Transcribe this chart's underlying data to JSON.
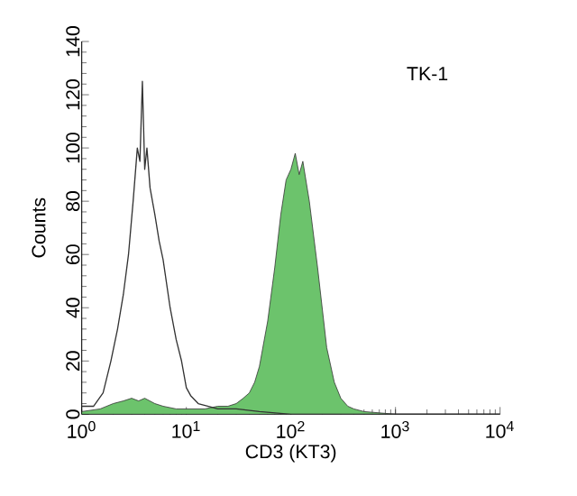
{
  "chart_data": {
    "type": "area",
    "xlabel": "CD3 (KT3)",
    "ylabel": "Counts",
    "annotations": [
      "TK-1"
    ],
    "log": "x",
    "grid": false,
    "xlim": [
      1,
      10000
    ],
    "ylim": [
      0,
      140
    ],
    "xticks": [
      {
        "value": 1,
        "label": "10$^{0}$"
      },
      {
        "value": 10,
        "label": "10$^{1}$"
      },
      {
        "value": 100,
        "label": "10$^{2}$"
      },
      {
        "value": 1000,
        "label": "10$^{3}$"
      },
      {
        "value": 10000,
        "label": "10$^{4}$"
      }
    ],
    "yticks": [
      0,
      20,
      40,
      60,
      80,
      100,
      120,
      140
    ],
    "series": [
      {
        "color": "#6cc36c",
        "x": [
          1,
          1.5,
          2,
          2.5,
          3,
          3.5,
          4,
          5,
          6,
          8,
          10,
          15,
          20,
          25,
          30,
          35,
          40,
          45,
          50,
          60,
          70,
          80,
          90,
          100,
          110,
          120,
          130,
          150,
          180,
          220,
          260,
          300,
          350,
          400,
          500,
          1000,
          10000
        ],
        "values": [
          1,
          2,
          4,
          5,
          6,
          5,
          6,
          4,
          3,
          2,
          2,
          2,
          3,
          3,
          4,
          6,
          8,
          12,
          18,
          35,
          55,
          75,
          88,
          92,
          98,
          90,
          95,
          80,
          55,
          25,
          12,
          6,
          3,
          2,
          1,
          0,
          0
        ]
      },
      {
        "type": "line",
        "color": "#333333",
        "x": [
          1,
          1.3,
          1.6,
          1.9,
          2.2,
          2.5,
          2.8,
          3.1,
          3.4,
          3.6,
          3.8,
          4.0,
          4.2,
          4.5,
          5.0,
          5.5,
          6.0,
          7.0,
          8.0,
          9.0,
          10,
          11,
          13,
          16,
          20,
          30,
          50,
          100,
          1000,
          10000
        ],
        "values": [
          3,
          3,
          8,
          20,
          32,
          45,
          60,
          80,
          100,
          95,
          125,
          92,
          100,
          85,
          75,
          65,
          58,
          40,
          28,
          20,
          10,
          7,
          4,
          3,
          2,
          2,
          1,
          0,
          0,
          0
        ]
      }
    ]
  }
}
